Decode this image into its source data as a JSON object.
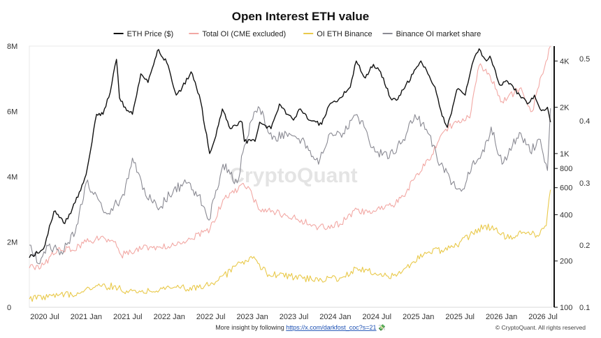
{
  "chart_data": {
    "type": "line",
    "title": "Open Interest ETH value",
    "x_ticks": [
      "2020 Jul",
      "2021 Jan",
      "2021 Jul",
      "2022 Jan",
      "2022 Jul",
      "2023 Jan",
      "2023 Jul",
      "2024 Jan",
      "2024 Jul",
      "2025 Jan",
      "2025 Jul",
      "2026 Jan",
      "2026 Jul"
    ],
    "xlim": [
      "2020-05-01",
      "2026-07-05"
    ],
    "y_left": {
      "ticks": [
        "0",
        "2M",
        "4M",
        "6M",
        "8M"
      ],
      "tick_values": [
        0,
        2000000,
        4000000,
        6000000,
        8000000
      ],
      "lim": [
        0,
        8000000
      ]
    },
    "y_price": {
      "scale": "log",
      "ticks": [
        "100",
        "200",
        "400",
        "600",
        "800",
        "1K",
        "2K",
        "4K"
      ],
      "tick_values": [
        100,
        200,
        400,
        600,
        800,
        1000,
        2000,
        4000
      ],
      "lim": [
        100,
        5000
      ]
    },
    "y_share": {
      "ticks": [
        "0.1",
        "0.2",
        "0.3",
        "0.4",
        "0.5"
      ],
      "tick_values": [
        0.1,
        0.2,
        0.3,
        0.4,
        0.5
      ],
      "lim": [
        0.1,
        0.52
      ]
    },
    "series": [
      {
        "name": "ETH Price ($)",
        "axis": "price",
        "color": "#111111",
        "points": [
          [
            "2020-05-01",
            210
          ],
          [
            "2020-07-01",
            240
          ],
          [
            "2020-08-15",
            420
          ],
          [
            "2020-10-01",
            350
          ],
          [
            "2020-11-15",
            480
          ],
          [
            "2021-01-01",
            730
          ],
          [
            "2021-02-15",
            1800
          ],
          [
            "2021-03-15",
            1800
          ],
          [
            "2021-04-15",
            2500
          ],
          [
            "2021-05-12",
            4100
          ],
          [
            "2021-05-25",
            2300
          ],
          [
            "2021-06-25",
            1900
          ],
          [
            "2021-07-20",
            1800
          ],
          [
            "2021-08-25",
            3300
          ],
          [
            "2021-09-25",
            2900
          ],
          [
            "2021-10-25",
            4100
          ],
          [
            "2021-11-10",
            4750
          ],
          [
            "2021-12-15",
            3900
          ],
          [
            "2022-01-25",
            2400
          ],
          [
            "2022-02-20",
            2700
          ],
          [
            "2022-03-30",
            3400
          ],
          [
            "2022-05-10",
            2200
          ],
          [
            "2022-06-18",
            1000
          ],
          [
            "2022-07-15",
            1300
          ],
          [
            "2022-08-12",
            1950
          ],
          [
            "2022-09-15",
            1450
          ],
          [
            "2022-11-05",
            1600
          ],
          [
            "2022-11-15",
            1200
          ],
          [
            "2022-12-31",
            1200
          ],
          [
            "2023-01-20",
            1600
          ],
          [
            "2023-03-10",
            1450
          ],
          [
            "2023-04-15",
            2100
          ],
          [
            "2023-05-20",
            1800
          ],
          [
            "2023-06-15",
            1650
          ],
          [
            "2023-07-15",
            1950
          ],
          [
            "2023-08-20",
            1650
          ],
          [
            "2023-10-15",
            1550
          ],
          [
            "2023-11-15",
            2050
          ],
          [
            "2024-01-01",
            2300
          ],
          [
            "2024-02-15",
            2700
          ],
          [
            "2024-03-12",
            4000
          ],
          [
            "2024-04-20",
            3100
          ],
          [
            "2024-05-25",
            3800
          ],
          [
            "2024-06-25",
            3400
          ],
          [
            "2024-08-06",
            2300
          ],
          [
            "2024-09-07",
            2250
          ],
          [
            "2024-10-01",
            2600
          ],
          [
            "2024-11-12",
            3300
          ],
          [
            "2024-12-16",
            4000
          ],
          [
            "2025-01-15",
            3300
          ],
          [
            "2025-02-15",
            2700
          ],
          [
            "2025-03-12",
            1900
          ],
          [
            "2025-04-09",
            1480
          ],
          [
            "2025-05-20",
            2600
          ],
          [
            "2025-06-25",
            2400
          ],
          [
            "2025-07-25",
            3800
          ],
          [
            "2025-08-24",
            4800
          ],
          [
            "2025-09-25",
            4000
          ],
          [
            "2025-10-10",
            4300
          ],
          [
            "2025-11-20",
            2800
          ],
          [
            "2025-12-25",
            2950
          ],
          [
            "2026-02-15",
            2400
          ],
          [
            "2026-03-20",
            2100
          ],
          [
            "2026-04-20",
            2400
          ],
          [
            "2026-05-20",
            1900
          ],
          [
            "2026-06-15",
            2000
          ],
          [
            "2026-06-28",
            1600
          ]
        ]
      },
      {
        "name": "Total OI (CME excluded)",
        "axis": "left",
        "color": "#f2a8a4",
        "points": [
          [
            "2020-05-01",
            1200000
          ],
          [
            "2020-07-01",
            1300000
          ],
          [
            "2020-09-01",
            1800000
          ],
          [
            "2020-11-01",
            1750000
          ],
          [
            "2021-01-01",
            2000000
          ],
          [
            "2021-03-01",
            2100000
          ],
          [
            "2021-05-01",
            2000000
          ],
          [
            "2021-06-01",
            1600000
          ],
          [
            "2021-09-01",
            1800000
          ],
          [
            "2021-11-15",
            1850000
          ],
          [
            "2022-01-15",
            1900000
          ],
          [
            "2022-04-01",
            2100000
          ],
          [
            "2022-06-20",
            2400000
          ],
          [
            "2022-08-15",
            3300000
          ],
          [
            "2022-10-01",
            3500000
          ],
          [
            "2022-11-10",
            3800000
          ],
          [
            "2022-12-01",
            3700000
          ],
          [
            "2023-01-15",
            3000000
          ],
          [
            "2023-04-01",
            2900000
          ],
          [
            "2023-07-01",
            2700000
          ],
          [
            "2023-10-01",
            2450000
          ],
          [
            "2024-01-01",
            2550000
          ],
          [
            "2024-03-15",
            3000000
          ],
          [
            "2024-05-01",
            2900000
          ],
          [
            "2024-08-10",
            3100000
          ],
          [
            "2024-10-01",
            3400000
          ],
          [
            "2024-12-01",
            4100000
          ],
          [
            "2025-01-20",
            4500000
          ],
          [
            "2025-03-15",
            5300000
          ],
          [
            "2025-05-15",
            5700000
          ],
          [
            "2025-07-15",
            5800000
          ],
          [
            "2025-08-24",
            7400000
          ],
          [
            "2025-10-10",
            7100000
          ],
          [
            "2025-12-01",
            6300000
          ],
          [
            "2026-02-15",
            6700000
          ],
          [
            "2026-04-10",
            6000000
          ],
          [
            "2026-05-20",
            7100000
          ],
          [
            "2026-06-15",
            7600000
          ],
          [
            "2026-06-28",
            8100000
          ]
        ]
      },
      {
        "name": "OI ETH Binance",
        "axis": "left",
        "color": "#e9c94a",
        "points": [
          [
            "2020-05-01",
            250000
          ],
          [
            "2020-09-01",
            350000
          ],
          [
            "2020-12-01",
            420000
          ],
          [
            "2021-02-01",
            600000
          ],
          [
            "2021-05-01",
            650000
          ],
          [
            "2021-07-01",
            450000
          ],
          [
            "2021-10-01",
            500000
          ],
          [
            "2022-01-01",
            580000
          ],
          [
            "2022-05-01",
            600000
          ],
          [
            "2022-07-20",
            800000
          ],
          [
            "2022-11-01",
            1350000
          ],
          [
            "2022-12-20",
            1500000
          ],
          [
            "2023-03-01",
            1000000
          ],
          [
            "2023-06-01",
            950000
          ],
          [
            "2023-09-01",
            850000
          ],
          [
            "2024-01-01",
            900000
          ],
          [
            "2024-03-15",
            1200000
          ],
          [
            "2024-06-01",
            1050000
          ],
          [
            "2024-09-01",
            950000
          ],
          [
            "2024-11-15",
            1400000
          ],
          [
            "2025-01-20",
            1700000
          ],
          [
            "2025-03-15",
            1750000
          ],
          [
            "2025-05-20",
            1900000
          ],
          [
            "2025-07-15",
            2200000
          ],
          [
            "2025-09-15",
            2500000
          ],
          [
            "2025-11-01",
            2400000
          ],
          [
            "2026-01-01",
            2100000
          ],
          [
            "2026-03-01",
            2300000
          ],
          [
            "2026-05-01",
            2200000
          ],
          [
            "2026-06-10",
            2500000
          ],
          [
            "2026-06-28",
            3600000
          ]
        ]
      },
      {
        "name": "Binance OI market share",
        "axis": "share",
        "color": "#8a8a93",
        "points": [
          [
            "2020-05-01",
            0.2
          ],
          [
            "2020-06-15",
            0.17
          ],
          [
            "2020-07-15",
            0.2
          ],
          [
            "2020-09-15",
            0.19
          ],
          [
            "2020-11-15",
            0.22
          ],
          [
            "2021-01-01",
            0.3
          ],
          [
            "2021-02-15",
            0.28
          ],
          [
            "2021-04-01",
            0.25
          ],
          [
            "2021-06-15",
            0.28
          ],
          [
            "2021-07-20",
            0.34
          ],
          [
            "2021-09-15",
            0.28
          ],
          [
            "2021-11-15",
            0.26
          ],
          [
            "2022-01-15",
            0.29
          ],
          [
            "2022-03-15",
            0.3
          ],
          [
            "2022-05-01",
            0.28
          ],
          [
            "2022-06-15",
            0.24
          ],
          [
            "2022-08-15",
            0.33
          ],
          [
            "2022-10-15",
            0.3
          ],
          [
            "2022-11-15",
            0.36
          ],
          [
            "2022-12-15",
            0.4
          ],
          [
            "2023-01-20",
            0.42
          ],
          [
            "2023-03-15",
            0.37
          ],
          [
            "2023-05-15",
            0.38
          ],
          [
            "2023-07-20",
            0.37
          ],
          [
            "2023-10-01",
            0.33
          ],
          [
            "2023-11-20",
            0.38
          ],
          [
            "2024-01-15",
            0.38
          ],
          [
            "2024-03-15",
            0.41
          ],
          [
            "2024-04-15",
            0.39
          ],
          [
            "2024-06-01",
            0.35
          ],
          [
            "2024-08-01",
            0.34
          ],
          [
            "2024-10-01",
            0.37
          ],
          [
            "2024-11-20",
            0.41
          ],
          [
            "2025-01-15",
            0.38
          ],
          [
            "2025-03-10",
            0.33
          ],
          [
            "2025-05-01",
            0.3
          ],
          [
            "2025-06-15",
            0.29
          ],
          [
            "2025-07-25",
            0.33
          ],
          [
            "2025-09-15",
            0.35
          ],
          [
            "2025-10-15",
            0.39
          ],
          [
            "2025-12-01",
            0.33
          ],
          [
            "2026-01-15",
            0.36
          ],
          [
            "2026-02-20",
            0.38
          ],
          [
            "2026-04-01",
            0.35
          ],
          [
            "2026-05-15",
            0.37
          ],
          [
            "2026-06-15",
            0.32
          ],
          [
            "2026-06-28",
            0.42
          ]
        ]
      }
    ],
    "legend_position": "top-center",
    "grid": false
  },
  "watermark": "CryptoQuant",
  "footer": {
    "text": "More insight by following ",
    "link": "https://x.com/darkfost_coc?s=21",
    "emoji": "💸"
  },
  "copyright": "© CryptoQuant. All rights reserved"
}
